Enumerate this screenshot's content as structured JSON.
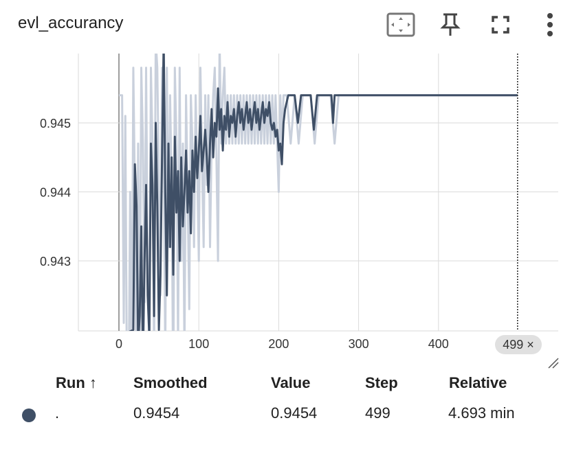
{
  "card": {
    "title": "evl_accurancy",
    "icons": [
      "fit-domain-icon",
      "pin-icon",
      "fullscreen-icon",
      "more-vert-icon"
    ]
  },
  "chart_data": {
    "type": "line",
    "xlim": [
      -50,
      550
    ],
    "ylim": [
      0.942,
      0.946
    ],
    "x_ticks": [
      0,
      100,
      200,
      300,
      400
    ],
    "x_tick_labels": [
      "0",
      "100",
      "200",
      "300",
      "400"
    ],
    "y_ticks": [
      0.943,
      0.944,
      0.945
    ],
    "y_tick_labels": [
      "0.943",
      "0.944",
      "0.945"
    ],
    "grid": true,
    "hover_step": 499,
    "hover_label": "499 ×",
    "series": [
      {
        "role": "raw",
        "color": "#c9d0dc",
        "x": [
          0,
          4,
          6,
          8,
          10,
          12,
          14,
          16,
          18,
          20,
          22,
          24,
          26,
          28,
          30,
          32,
          34,
          36,
          38,
          40,
          42,
          44,
          46,
          48,
          50,
          52,
          54,
          56,
          58,
          60,
          62,
          64,
          66,
          68,
          70,
          72,
          74,
          76,
          78,
          80,
          82,
          84,
          86,
          88,
          90,
          92,
          94,
          96,
          98,
          100,
          102,
          104,
          106,
          108,
          110,
          112,
          114,
          116,
          118,
          120,
          122,
          124,
          126,
          128,
          130,
          132,
          134,
          136,
          138,
          140,
          142,
          144,
          146,
          148,
          150,
          152,
          154,
          156,
          158,
          160,
          162,
          164,
          166,
          168,
          170,
          172,
          174,
          176,
          178,
          180,
          182,
          184,
          186,
          188,
          190,
          192,
          194,
          196,
          198,
          200,
          202,
          204,
          206,
          208,
          210,
          215,
          220,
          225,
          230,
          235,
          240,
          245,
          250,
          255,
          260,
          265,
          270,
          275,
          280,
          300,
          350,
          400,
          450,
          499
        ],
        "y": [
          0.9454,
          0.9454,
          0.9421,
          0.9451,
          0.9412,
          0.9408,
          0.944,
          0.9412,
          0.9458,
          0.944,
          0.9408,
          0.9447,
          0.9412,
          0.9458,
          0.9447,
          0.9424,
          0.9458,
          0.943,
          0.9416,
          0.9458,
          0.9447,
          0.9416,
          0.9462,
          0.9458,
          0.9441,
          0.9425,
          0.9458,
          0.9447,
          0.9416,
          0.9458,
          0.9432,
          0.9454,
          0.9441,
          0.941,
          0.9458,
          0.9447,
          0.9418,
          0.9458,
          0.943,
          0.9447,
          0.9416,
          0.9454,
          0.944,
          0.9423,
          0.9454,
          0.9447,
          0.9432,
          0.9454,
          0.9443,
          0.943,
          0.9458,
          0.9445,
          0.9432,
          0.9454,
          0.9441,
          0.9454,
          0.9432,
          0.9447,
          0.9454,
          0.9458,
          0.9445,
          0.943,
          0.9462,
          0.9447,
          0.9454,
          0.9458,
          0.9447,
          0.9454,
          0.9447,
          0.9454,
          0.9447,
          0.9454,
          0.9447,
          0.9454,
          0.9447,
          0.9454,
          0.9447,
          0.9454,
          0.9447,
          0.9454,
          0.9447,
          0.9454,
          0.9447,
          0.9454,
          0.9447,
          0.9454,
          0.9447,
          0.9454,
          0.9447,
          0.9454,
          0.9447,
          0.9454,
          0.9447,
          0.9454,
          0.9447,
          0.9454,
          0.9447,
          0.9454,
          0.9447,
          0.944,
          0.9454,
          0.9447,
          0.9454,
          0.9454,
          0.9454,
          0.9447,
          0.9454,
          0.9447,
          0.9454,
          0.9454,
          0.9454,
          0.9447,
          0.9454,
          0.9454,
          0.9454,
          0.9454,
          0.9447,
          0.9454,
          0.9454,
          0.9454,
          0.9454,
          0.9454,
          0.9454,
          0.9454
        ]
      },
      {
        "role": "smoothed",
        "color": "#3f4f66",
        "x": [
          0,
          18,
          20,
          22,
          24,
          26,
          28,
          30,
          32,
          34,
          36,
          38,
          40,
          42,
          44,
          46,
          48,
          50,
          52,
          54,
          56,
          58,
          60,
          62,
          64,
          66,
          68,
          70,
          72,
          74,
          76,
          78,
          80,
          82,
          84,
          86,
          88,
          90,
          92,
          94,
          96,
          98,
          100,
          102,
          104,
          106,
          108,
          110,
          112,
          114,
          116,
          118,
          120,
          122,
          124,
          126,
          128,
          130,
          132,
          134,
          136,
          138,
          140,
          142,
          144,
          146,
          148,
          150,
          152,
          154,
          156,
          158,
          160,
          162,
          164,
          166,
          168,
          170,
          172,
          174,
          176,
          178,
          180,
          182,
          184,
          186,
          188,
          190,
          192,
          194,
          196,
          198,
          200,
          202,
          204,
          206,
          208,
          212,
          216,
          220,
          224,
          228,
          232,
          236,
          240,
          244,
          248,
          252,
          256,
          260,
          264,
          266,
          268,
          270,
          274,
          280,
          300,
          350,
          400,
          450,
          499
        ],
        "y": [
          0.9419,
          0.942,
          0.9444,
          0.9438,
          0.9418,
          0.9422,
          0.9435,
          0.9415,
          0.943,
          0.9441,
          0.9425,
          0.9419,
          0.9447,
          0.9441,
          0.9422,
          0.945,
          0.9438,
          0.942,
          0.9428,
          0.9445,
          0.9462,
          0.944,
          0.9425,
          0.9447,
          0.9432,
          0.9445,
          0.9428,
          0.9448,
          0.9437,
          0.9443,
          0.943,
          0.9445,
          0.9435,
          0.944,
          0.9446,
          0.9437,
          0.9443,
          0.9434,
          0.9446,
          0.944,
          0.9448,
          0.9442,
          0.9446,
          0.9451,
          0.9443,
          0.9446,
          0.9449,
          0.9445,
          0.944,
          0.9447,
          0.9452,
          0.9445,
          0.945,
          0.9448,
          0.9455,
          0.9449,
          0.9452,
          0.9446,
          0.9451,
          0.9449,
          0.9453,
          0.9448,
          0.9451,
          0.945,
          0.9452,
          0.9448,
          0.9451,
          0.9453,
          0.945,
          0.9452,
          0.9449,
          0.9451,
          0.9453,
          0.945,
          0.9452,
          0.9449,
          0.9451,
          0.9453,
          0.945,
          0.9452,
          0.9449,
          0.9451,
          0.9453,
          0.945,
          0.9452,
          0.9451,
          0.9453,
          0.945,
          0.9449,
          0.945,
          0.9448,
          0.9449,
          0.9446,
          0.9447,
          0.9444,
          0.945,
          0.9452,
          0.9454,
          0.9454,
          0.9454,
          0.945,
          0.9454,
          0.9454,
          0.9454,
          0.9454,
          0.9449,
          0.9454,
          0.9454,
          0.9454,
          0.9454,
          0.9454,
          0.9454,
          0.945,
          0.9454,
          0.9454,
          0.9454,
          0.9454,
          0.9454,
          0.9454,
          0.9454,
          0.9454
        ]
      }
    ]
  },
  "table": {
    "headers": {
      "run": "Run ↑",
      "smoothed": "Smoothed",
      "value": "Value",
      "step": "Step",
      "relative": "Relative"
    },
    "row": {
      "color": "#3f4f66",
      "run": ".",
      "smoothed": "0.9454",
      "value": "0.9454",
      "step": "499",
      "relative": "4.693 min"
    }
  }
}
